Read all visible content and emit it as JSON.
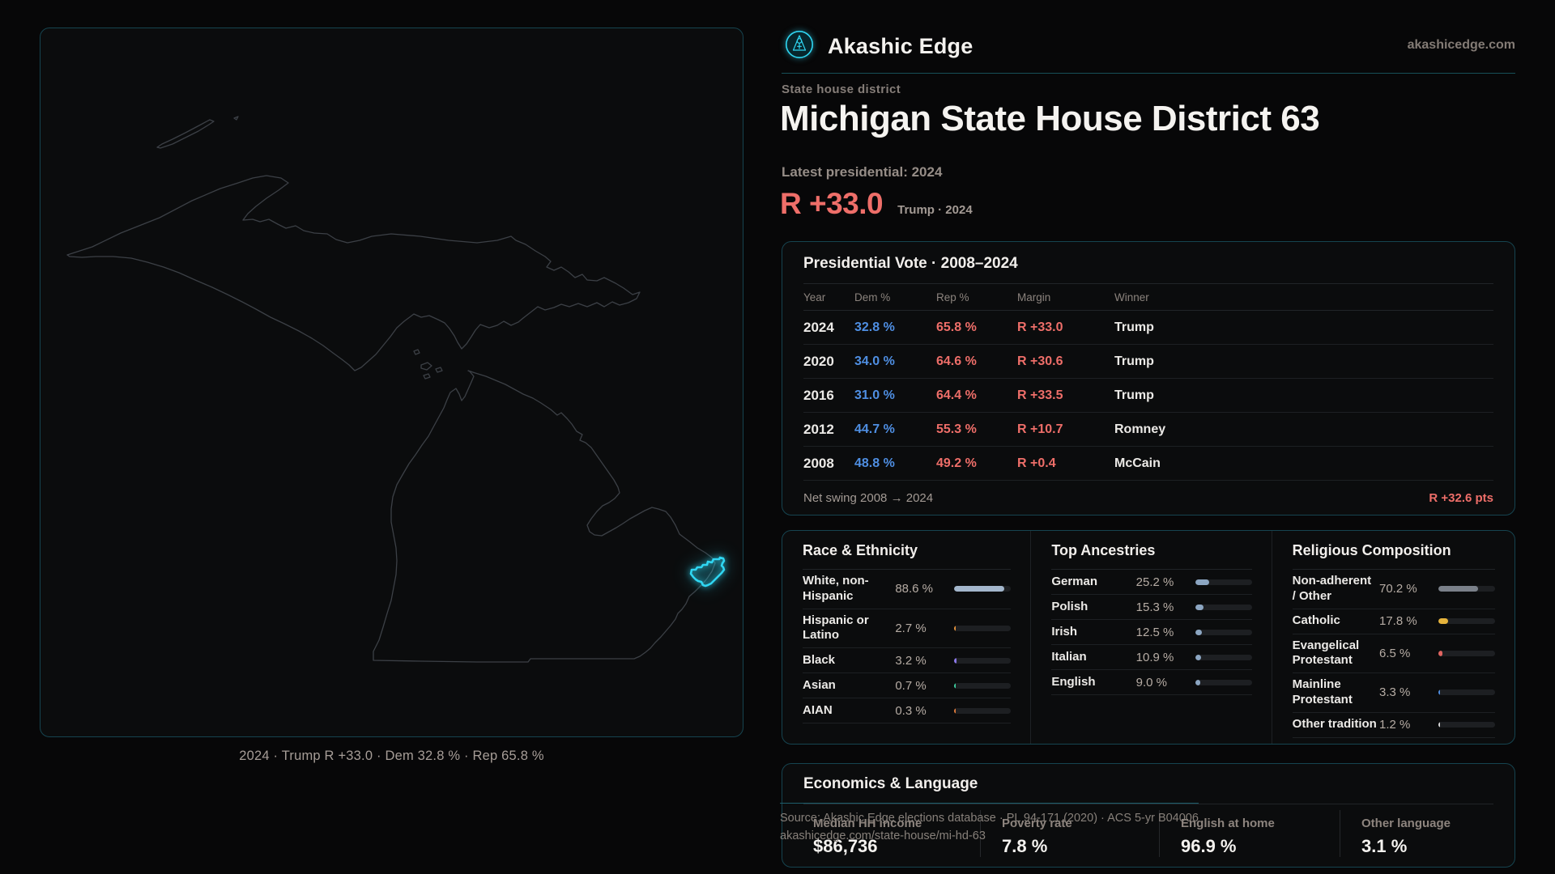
{
  "theme": {
    "accent": "#2fd6f2",
    "dem_blue": "#4f8fe3",
    "rep_red": "#ee6e69"
  },
  "brand": {
    "name": "Akashic Edge",
    "domain": "akashicedge.com"
  },
  "page": {
    "kicker": "State house district",
    "title": "Michigan State House District 63",
    "latest_label": "Latest presidential: 2024",
    "headline_margin": "R +33.0",
    "headline_detail": "Trump · 2024"
  },
  "map": {
    "caption": "2024 · Trump R +33.0 · Dem 32.8 % · Rep 65.8 %"
  },
  "presidential": {
    "title": "Presidential Vote · 2008–2024",
    "columns": [
      "Year",
      "Dem %",
      "Rep %",
      "Margin",
      "Winner"
    ],
    "rows": [
      {
        "year": "2024",
        "dem": "32.8 %",
        "rep": "65.8 %",
        "margin": "R +33.0",
        "winner": "Trump"
      },
      {
        "year": "2020",
        "dem": "34.0 %",
        "rep": "64.6 %",
        "margin": "R +30.6",
        "winner": "Trump"
      },
      {
        "year": "2016",
        "dem": "31.0 %",
        "rep": "64.4 %",
        "margin": "R +33.5",
        "winner": "Trump"
      },
      {
        "year": "2012",
        "dem": "44.7 %",
        "rep": "55.3 %",
        "margin": "R +10.7",
        "winner": "Romney"
      },
      {
        "year": "2008",
        "dem": "48.8 %",
        "rep": "49.2 %",
        "margin": "R +0.4",
        "winner": "McCain"
      }
    ],
    "net_swing_label": "Net swing 2008 → 2024",
    "net_swing_value": "R +32.6 pts"
  },
  "demographics": {
    "race": {
      "title": "Race & Ethnicity",
      "rows": [
        {
          "label": "White, non-Hispanic",
          "value": "88.6 %",
          "pct": 88.6,
          "color": "#a3b6cc"
        },
        {
          "label": "Hispanic or Latino",
          "value": "2.7 %",
          "pct": 2.7,
          "color": "#e5933c"
        },
        {
          "label": "Black",
          "value": "3.2 %",
          "pct": 3.2,
          "color": "#8b78e8"
        },
        {
          "label": "Asian",
          "value": "0.7 %",
          "pct": 0.7,
          "color": "#3dcf9f"
        },
        {
          "label": "AIAN",
          "value": "0.3 %",
          "pct": 0.3,
          "color": "#e07b3a"
        }
      ]
    },
    "ancestries": {
      "title": "Top Ancestries",
      "rows": [
        {
          "label": "German",
          "value": "25.2 %",
          "pct": 25.2,
          "color": "#8ca6c2"
        },
        {
          "label": "Polish",
          "value": "15.3 %",
          "pct": 15.3,
          "color": "#8ca6c2"
        },
        {
          "label": "Irish",
          "value": "12.5 %",
          "pct": 12.5,
          "color": "#8ca6c2"
        },
        {
          "label": "Italian",
          "value": "10.9 %",
          "pct": 10.9,
          "color": "#8ca6c2"
        },
        {
          "label": "English",
          "value": "9.0 %",
          "pct": 9.0,
          "color": "#8ca6c2"
        }
      ]
    },
    "religion": {
      "title": "Religious Composition",
      "rows": [
        {
          "label": "Non-adherent / Other",
          "value": "70.2 %",
          "pct": 70.2,
          "color": "#7a8089"
        },
        {
          "label": "Catholic",
          "value": "17.8 %",
          "pct": 17.8,
          "color": "#e6b33c"
        },
        {
          "label": "Evangelical Protestant",
          "value": "6.5 %",
          "pct": 6.5,
          "color": "#e06460"
        },
        {
          "label": "Mainline Protestant",
          "value": "3.3 %",
          "pct": 3.3,
          "color": "#4e8de0"
        },
        {
          "label": "Other tradition",
          "value": "1.2 %",
          "pct": 1.2,
          "color": "#d8d8d8"
        }
      ]
    }
  },
  "economics": {
    "title": "Economics & Language",
    "stats": [
      {
        "label": "Median HH income",
        "value": "$86,736"
      },
      {
        "label": "Poverty rate",
        "value": "7.8 %"
      },
      {
        "label": "English at home",
        "value": "96.9 %"
      },
      {
        "label": "Other language",
        "value": "3.1 %"
      }
    ]
  },
  "footer": {
    "line1": "Source: Akashic Edge elections database · PL 94-171 (2020) · ACS 5-yr B04006",
    "line2": "akashicedge.com/state-house/mi-hd-63"
  }
}
